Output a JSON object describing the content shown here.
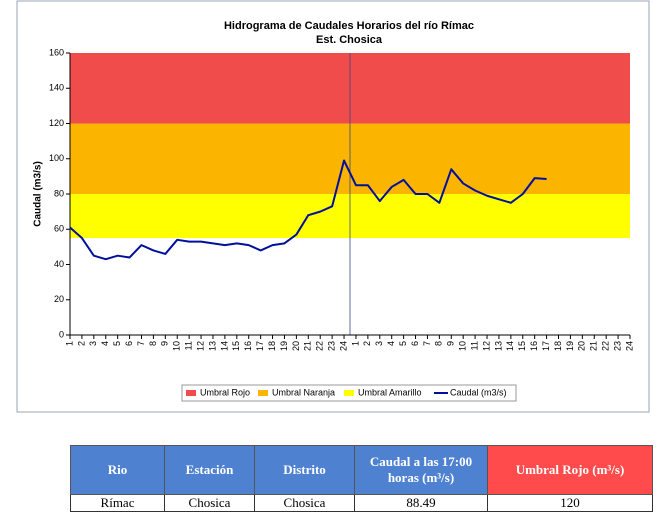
{
  "chart_data": {
    "type": "line",
    "title": "Hidrograma de Caudales Horarios del río Rímac",
    "subtitle": "Est. Chosica",
    "ylabel": "Caudal  (m3/s)",
    "categories": [
      "1",
      "2",
      "3",
      "4",
      "5",
      "6",
      "7",
      "8",
      "9",
      "10",
      "11",
      "12",
      "13",
      "14",
      "15",
      "16",
      "17",
      "18",
      "19",
      "20",
      "21",
      "22",
      "23",
      "24",
      "1",
      "2",
      "3",
      "4",
      "5",
      "6",
      "7",
      "8",
      "9",
      "10",
      "11",
      "12",
      "13",
      "14",
      "15",
      "16",
      "17",
      "18",
      "19",
      "20",
      "21",
      "22",
      "23",
      "24"
    ],
    "bands": [
      {
        "name": "Umbral Rojo",
        "color": "#f04c4c",
        "from": 120,
        "to": 160
      },
      {
        "name": "Umbral Naranja",
        "color": "#fbb400",
        "from": 80,
        "to": 120
      },
      {
        "name": "Umbral Amarillo",
        "color": "#ffff00",
        "from": 55,
        "to": 80
      }
    ],
    "series": [
      {
        "name": "Caudal (m3/s)",
        "color": "#00109c",
        "values": [
          61,
          55,
          45,
          43,
          45,
          44,
          51,
          48,
          46,
          54,
          53,
          53,
          52,
          51,
          52,
          51,
          48,
          51,
          52,
          57,
          68,
          70,
          73,
          99,
          85,
          85,
          76,
          84,
          88,
          80,
          80,
          75,
          94,
          86,
          82,
          79,
          77,
          75,
          80,
          89,
          88.49,
          null,
          null,
          null,
          null,
          null,
          null,
          null
        ]
      }
    ],
    "ylim": [
      0,
      160
    ],
    "yticks": [
      0,
      20,
      40,
      60,
      80,
      100,
      120,
      140,
      160
    ]
  },
  "table": {
    "header": [
      "Rio",
      "Estación",
      "Distrito",
      "Caudal a las 17:00 horas (m³/s)",
      "Umbral Rojo (m³/s)"
    ],
    "rows": [
      [
        "Rímac",
        "Chosica",
        "Chosica",
        "88.49",
        "120"
      ]
    ]
  }
}
